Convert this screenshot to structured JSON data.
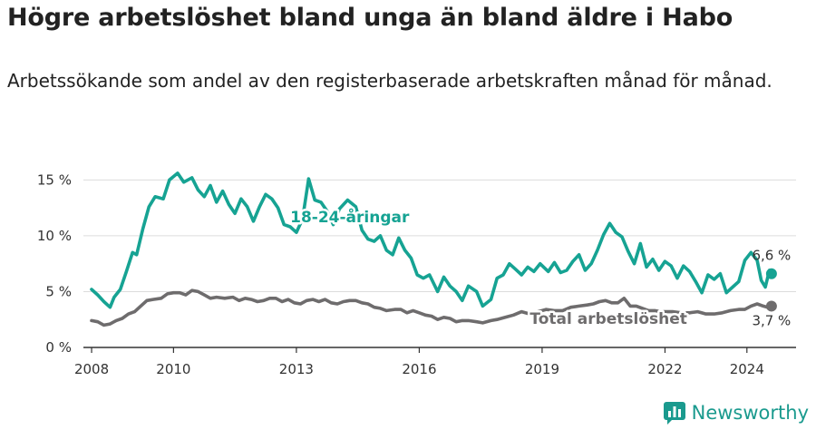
{
  "header": {
    "title": "Högre arbetslöshet bland unga än bland äldre i Habo",
    "subtitle": "Arbetssökande som andel av den registerbaserade arbetskraften månad för månad."
  },
  "brand": {
    "name": "Newsworthy",
    "color": "#1a9a8e"
  },
  "chart_data": {
    "type": "line",
    "title": "Högre arbetslöshet bland unga än bland äldre i Habo",
    "subtitle": "Arbetssökande som andel av den registerbaserade arbetskraften månad för månad.",
    "xlabel": "",
    "ylabel": "",
    "xlim": [
      2007.8,
      2025.2
    ],
    "ylim": [
      0,
      16
    ],
    "grid": true,
    "x_ticks": [
      {
        "value": 2008,
        "label": "2008"
      },
      {
        "value": 2010,
        "label": "2010"
      },
      {
        "value": 2013,
        "label": "2013"
      },
      {
        "value": 2016,
        "label": "2016"
      },
      {
        "value": 2019,
        "label": "2019"
      },
      {
        "value": 2022,
        "label": "2022"
      },
      {
        "value": 2024,
        "label": "2024"
      }
    ],
    "y_ticks": [
      {
        "value": 0,
        "label": "0 %"
      },
      {
        "value": 5,
        "label": "5 %"
      },
      {
        "value": 10,
        "label": "10 %"
      },
      {
        "value": 15,
        "label": "15 %"
      }
    ],
    "series": [
      {
        "name": "18-24-åringar",
        "color": "#16a393",
        "end_label": "6,6 %",
        "end_value": 6.6,
        "points": [
          [
            2008.0,
            5.2
          ],
          [
            2008.15,
            4.7
          ],
          [
            2008.3,
            4.1
          ],
          [
            2008.45,
            3.6
          ],
          [
            2008.55,
            4.5
          ],
          [
            2008.7,
            5.2
          ],
          [
            2008.85,
            6.8
          ],
          [
            2009.0,
            8.5
          ],
          [
            2009.1,
            8.3
          ],
          [
            2009.25,
            10.6
          ],
          [
            2009.4,
            12.6
          ],
          [
            2009.55,
            13.5
          ],
          [
            2009.75,
            13.3
          ],
          [
            2009.9,
            15.0
          ],
          [
            2010.1,
            15.6
          ],
          [
            2010.25,
            14.8
          ],
          [
            2010.45,
            15.2
          ],
          [
            2010.6,
            14.1
          ],
          [
            2010.75,
            13.5
          ],
          [
            2010.9,
            14.5
          ],
          [
            2011.05,
            13.0
          ],
          [
            2011.2,
            14.0
          ],
          [
            2011.35,
            12.8
          ],
          [
            2011.5,
            12.0
          ],
          [
            2011.65,
            13.3
          ],
          [
            2011.8,
            12.6
          ],
          [
            2011.95,
            11.3
          ],
          [
            2012.1,
            12.6
          ],
          [
            2012.25,
            13.7
          ],
          [
            2012.4,
            13.3
          ],
          [
            2012.55,
            12.5
          ],
          [
            2012.7,
            11.0
          ],
          [
            2012.85,
            10.8
          ],
          [
            2013.0,
            10.3
          ],
          [
            2013.15,
            11.5
          ],
          [
            2013.3,
            15.1
          ],
          [
            2013.45,
            13.2
          ],
          [
            2013.6,
            13.0
          ],
          [
            2013.75,
            12.2
          ],
          [
            2013.9,
            11.0
          ],
          [
            2014.05,
            12.4
          ],
          [
            2014.25,
            13.2
          ],
          [
            2014.45,
            12.6
          ],
          [
            2014.6,
            10.5
          ],
          [
            2014.75,
            9.7
          ],
          [
            2014.9,
            9.5
          ],
          [
            2015.05,
            10.0
          ],
          [
            2015.2,
            8.7
          ],
          [
            2015.35,
            8.3
          ],
          [
            2015.5,
            9.8
          ],
          [
            2015.65,
            8.7
          ],
          [
            2015.8,
            8.0
          ],
          [
            2015.95,
            6.5
          ],
          [
            2016.1,
            6.2
          ],
          [
            2016.25,
            6.5
          ],
          [
            2016.45,
            5.0
          ],
          [
            2016.6,
            6.3
          ],
          [
            2016.75,
            5.5
          ],
          [
            2016.9,
            5.0
          ],
          [
            2017.05,
            4.2
          ],
          [
            2017.2,
            5.5
          ],
          [
            2017.4,
            5.0
          ],
          [
            2017.55,
            3.7
          ],
          [
            2017.75,
            4.3
          ],
          [
            2017.9,
            6.2
          ],
          [
            2018.05,
            6.5
          ],
          [
            2018.2,
            7.5
          ],
          [
            2018.35,
            7.0
          ],
          [
            2018.5,
            6.5
          ],
          [
            2018.65,
            7.2
          ],
          [
            2018.8,
            6.8
          ],
          [
            2018.95,
            7.5
          ],
          [
            2019.15,
            6.8
          ],
          [
            2019.3,
            7.6
          ],
          [
            2019.45,
            6.7
          ],
          [
            2019.6,
            6.9
          ],
          [
            2019.75,
            7.7
          ],
          [
            2019.9,
            8.3
          ],
          [
            2020.05,
            6.9
          ],
          [
            2020.2,
            7.5
          ],
          [
            2020.35,
            8.7
          ],
          [
            2020.5,
            10.1
          ],
          [
            2020.65,
            11.1
          ],
          [
            2020.8,
            10.3
          ],
          [
            2020.95,
            9.9
          ],
          [
            2021.1,
            8.6
          ],
          [
            2021.25,
            7.5
          ],
          [
            2021.4,
            9.3
          ],
          [
            2021.55,
            7.2
          ],
          [
            2021.7,
            7.9
          ],
          [
            2021.85,
            6.9
          ],
          [
            2022.0,
            7.7
          ],
          [
            2022.15,
            7.3
          ],
          [
            2022.3,
            6.2
          ],
          [
            2022.45,
            7.3
          ],
          [
            2022.6,
            6.8
          ],
          [
            2022.75,
            5.9
          ],
          [
            2022.9,
            4.9
          ],
          [
            2023.05,
            6.5
          ],
          [
            2023.2,
            6.1
          ],
          [
            2023.35,
            6.6
          ],
          [
            2023.5,
            4.9
          ],
          [
            2023.65,
            5.4
          ],
          [
            2023.8,
            5.9
          ],
          [
            2023.95,
            7.8
          ],
          [
            2024.1,
            8.5
          ],
          [
            2024.25,
            7.8
          ],
          [
            2024.35,
            6.0
          ],
          [
            2024.45,
            5.4
          ],
          [
            2024.55,
            6.9
          ],
          [
            2024.6,
            6.6
          ]
        ]
      },
      {
        "name": "Total arbetslöshet",
        "color": "#6e6c6d",
        "end_label": "3,7 %",
        "end_value": 3.7,
        "points": [
          [
            2008.0,
            2.4
          ],
          [
            2008.15,
            2.3
          ],
          [
            2008.3,
            2.0
          ],
          [
            2008.45,
            2.1
          ],
          [
            2008.6,
            2.4
          ],
          [
            2008.75,
            2.6
          ],
          [
            2008.9,
            3.0
          ],
          [
            2009.05,
            3.2
          ],
          [
            2009.2,
            3.7
          ],
          [
            2009.35,
            4.2
          ],
          [
            2009.5,
            4.3
          ],
          [
            2009.7,
            4.4
          ],
          [
            2009.85,
            4.8
          ],
          [
            2010.0,
            4.9
          ],
          [
            2010.15,
            4.9
          ],
          [
            2010.3,
            4.7
          ],
          [
            2010.45,
            5.1
          ],
          [
            2010.6,
            5.0
          ],
          [
            2010.75,
            4.7
          ],
          [
            2010.9,
            4.4
          ],
          [
            2011.05,
            4.5
          ],
          [
            2011.25,
            4.4
          ],
          [
            2011.45,
            4.5
          ],
          [
            2011.6,
            4.2
          ],
          [
            2011.75,
            4.4
          ],
          [
            2011.9,
            4.3
          ],
          [
            2012.05,
            4.1
          ],
          [
            2012.2,
            4.2
          ],
          [
            2012.35,
            4.4
          ],
          [
            2012.5,
            4.4
          ],
          [
            2012.65,
            4.1
          ],
          [
            2012.8,
            4.3
          ],
          [
            2012.95,
            4.0
          ],
          [
            2013.1,
            3.9
          ],
          [
            2013.25,
            4.2
          ],
          [
            2013.4,
            4.3
          ],
          [
            2013.55,
            4.1
          ],
          [
            2013.7,
            4.3
          ],
          [
            2013.85,
            4.0
          ],
          [
            2014.0,
            3.9
          ],
          [
            2014.15,
            4.1
          ],
          [
            2014.3,
            4.2
          ],
          [
            2014.45,
            4.2
          ],
          [
            2014.6,
            4.0
          ],
          [
            2014.75,
            3.9
          ],
          [
            2014.9,
            3.6
          ],
          [
            2015.05,
            3.5
          ],
          [
            2015.2,
            3.3
          ],
          [
            2015.4,
            3.4
          ],
          [
            2015.55,
            3.4
          ],
          [
            2015.7,
            3.1
          ],
          [
            2015.85,
            3.3
          ],
          [
            2016.0,
            3.1
          ],
          [
            2016.15,
            2.9
          ],
          [
            2016.3,
            2.8
          ],
          [
            2016.45,
            2.5
          ],
          [
            2016.6,
            2.7
          ],
          [
            2016.75,
            2.6
          ],
          [
            2016.9,
            2.3
          ],
          [
            2017.05,
            2.4
          ],
          [
            2017.2,
            2.4
          ],
          [
            2017.4,
            2.3
          ],
          [
            2017.55,
            2.2
          ],
          [
            2017.75,
            2.4
          ],
          [
            2017.9,
            2.5
          ],
          [
            2018.1,
            2.7
          ],
          [
            2018.3,
            2.9
          ],
          [
            2018.5,
            3.2
          ],
          [
            2018.7,
            3.0
          ],
          [
            2018.9,
            3.2
          ],
          [
            2019.1,
            3.4
          ],
          [
            2019.3,
            3.3
          ],
          [
            2019.5,
            3.3
          ],
          [
            2019.7,
            3.6
          ],
          [
            2019.9,
            3.7
          ],
          [
            2020.1,
            3.8
          ],
          [
            2020.25,
            3.9
          ],
          [
            2020.4,
            4.1
          ],
          [
            2020.55,
            4.2
          ],
          [
            2020.7,
            4.0
          ],
          [
            2020.85,
            4.0
          ],
          [
            2021.0,
            4.4
          ],
          [
            2021.15,
            3.7
          ],
          [
            2021.3,
            3.7
          ],
          [
            2021.45,
            3.5
          ],
          [
            2021.6,
            3.3
          ],
          [
            2021.75,
            3.3
          ],
          [
            2021.9,
            3.2
          ],
          [
            2022.05,
            3.2
          ],
          [
            2022.2,
            3.2
          ],
          [
            2022.4,
            3.1
          ],
          [
            2022.6,
            3.1
          ],
          [
            2022.8,
            3.2
          ],
          [
            2023.0,
            3.0
          ],
          [
            2023.2,
            3.0
          ],
          [
            2023.4,
            3.1
          ],
          [
            2023.6,
            3.3
          ],
          [
            2023.8,
            3.4
          ],
          [
            2023.95,
            3.4
          ],
          [
            2024.1,
            3.7
          ],
          [
            2024.25,
            3.9
          ],
          [
            2024.4,
            3.7
          ],
          [
            2024.5,
            3.6
          ],
          [
            2024.6,
            3.7
          ]
        ]
      }
    ],
    "annotations": [
      {
        "text": "18-24-åringar",
        "series": 0,
        "x": 2012.85,
        "y": 11.7
      },
      {
        "text": "Total arbetslöshet",
        "series": 1,
        "x": 2018.7,
        "y": 2.6
      }
    ]
  }
}
